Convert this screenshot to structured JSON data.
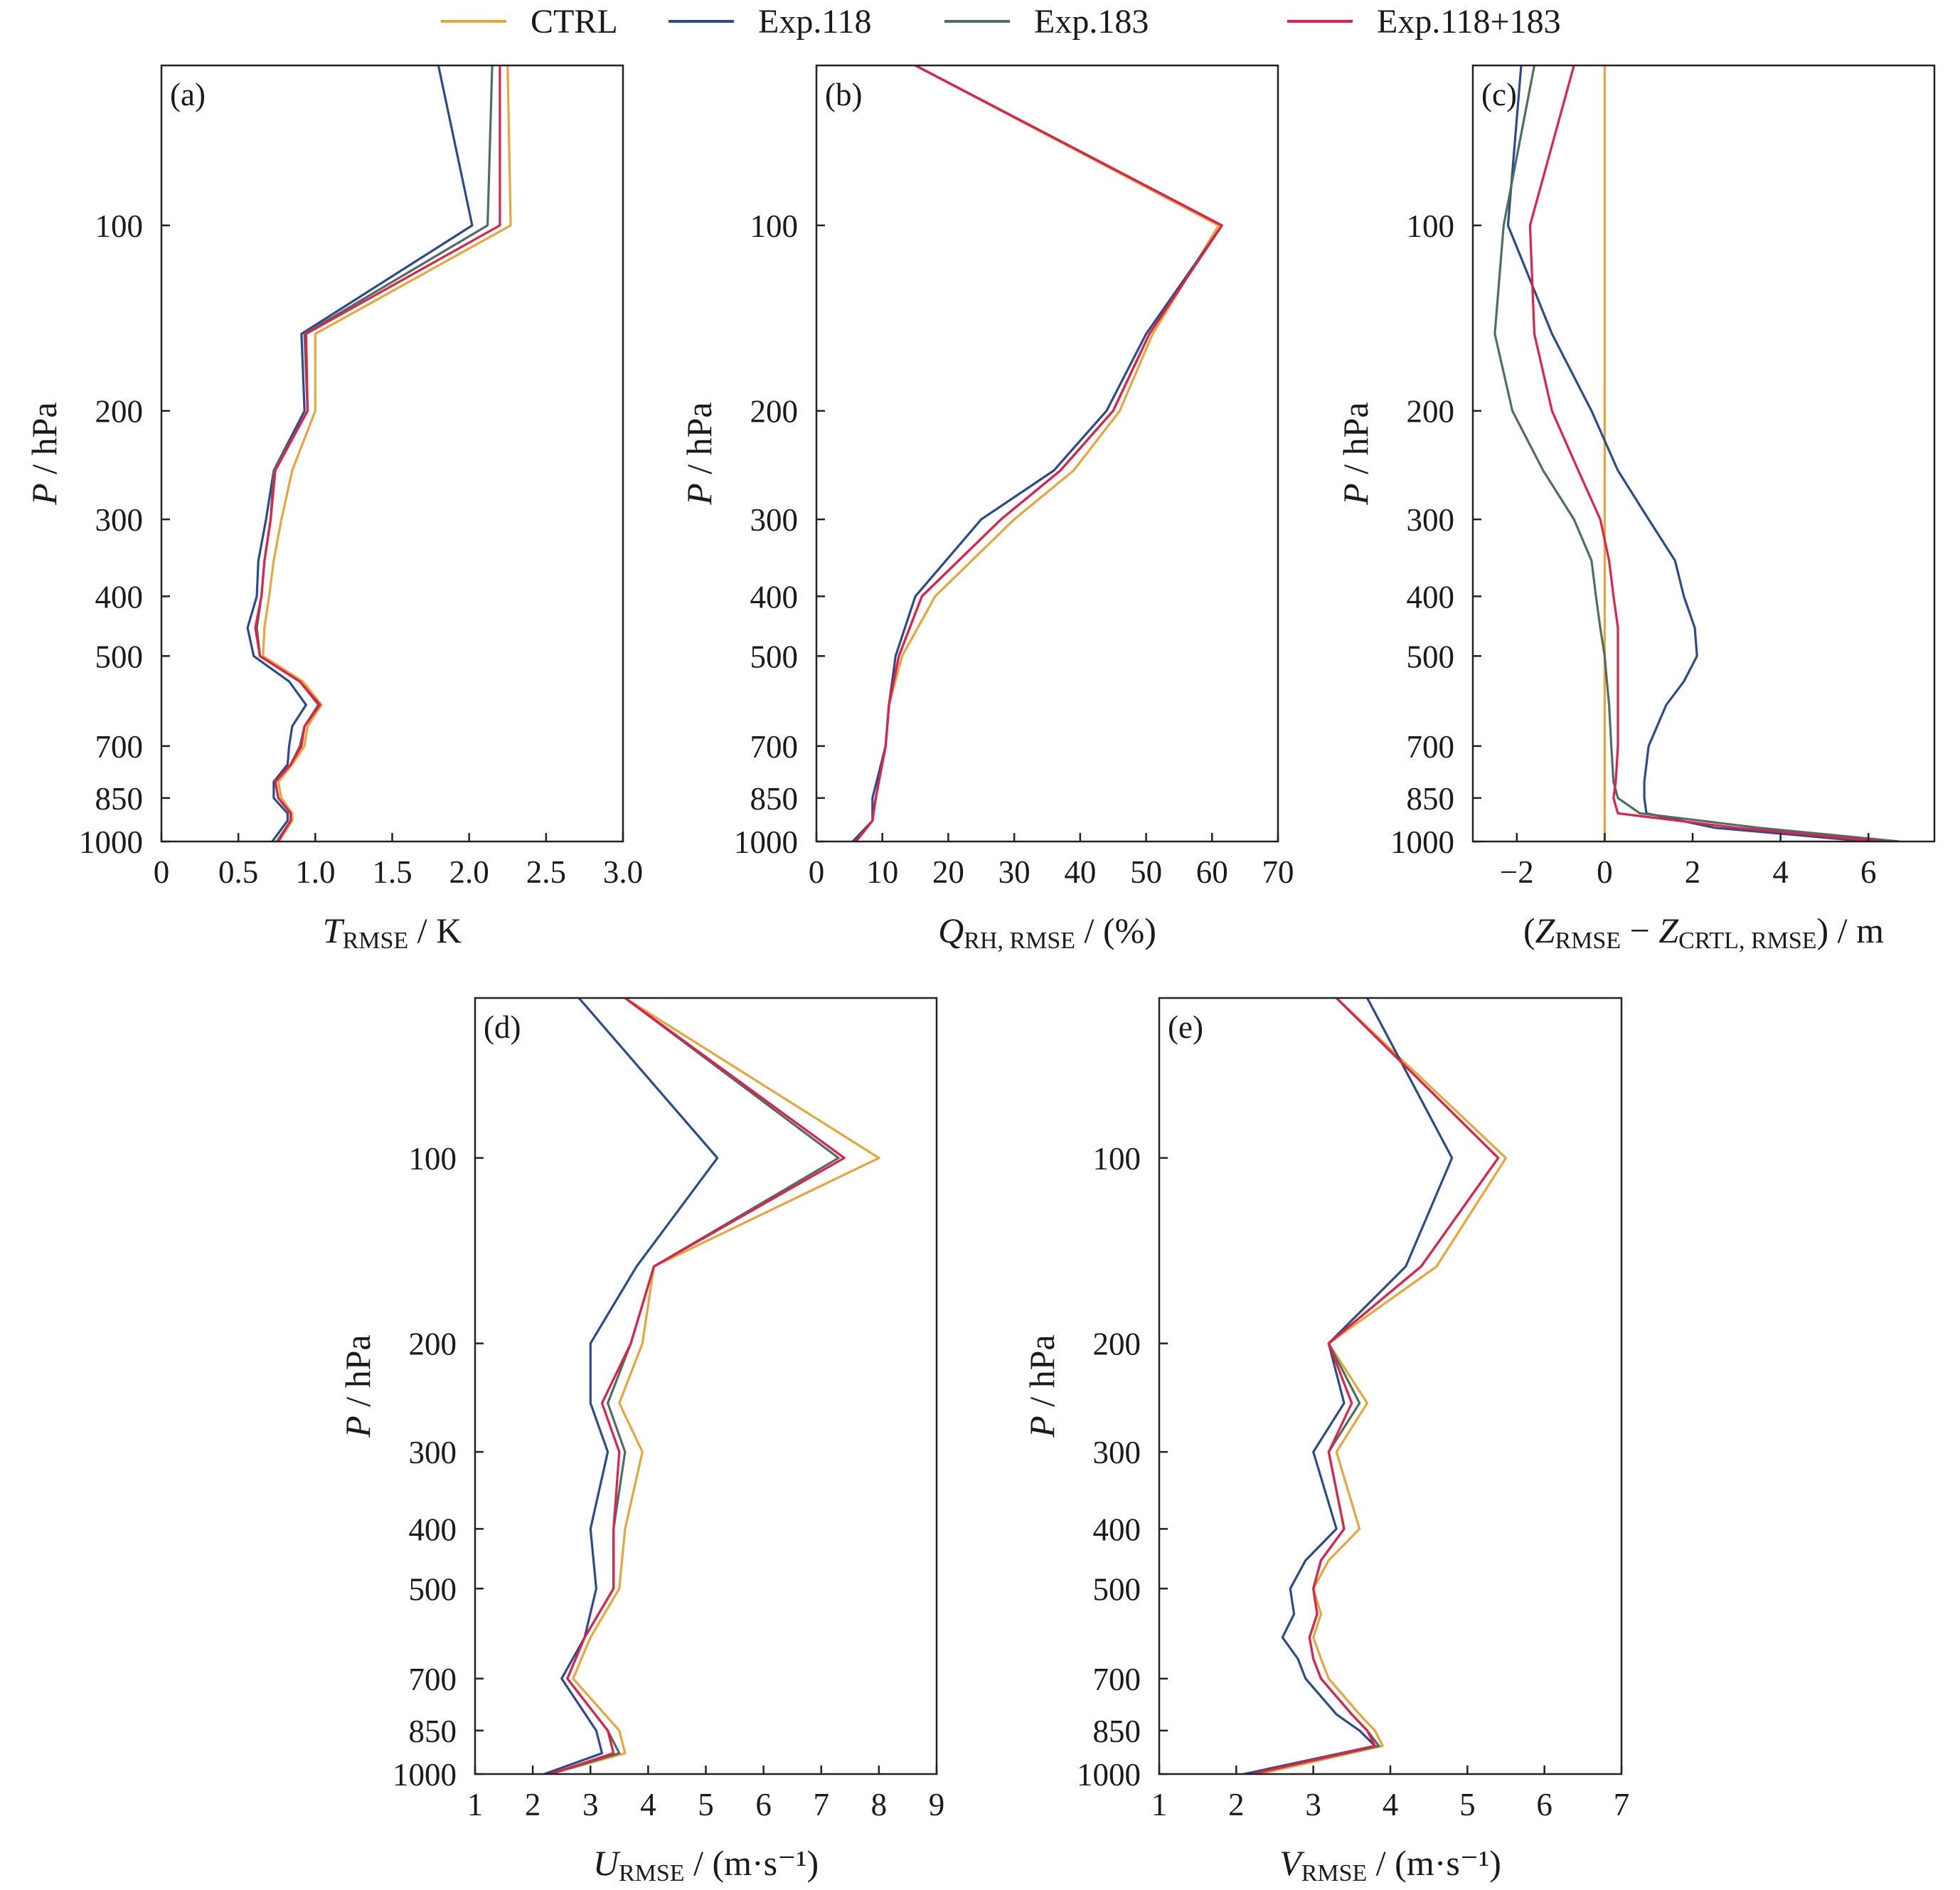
{
  "legend": [
    {
      "name": "CTRL",
      "color": "#e8a63a"
    },
    {
      "name": "Exp.118",
      "color": "#2b4b8f"
    },
    {
      "name": "Exp.183",
      "color": "#4f6e60"
    },
    {
      "name": "Exp.118+183",
      "color": "#e0214a"
    }
  ],
  "chart_data": [
    {
      "panel": "(a)",
      "type": "line",
      "orientation": "vertical-profile",
      "xlabel": "T_RMSE / K",
      "xlabel_main": "T",
      "xlabel_sub": "RMSE",
      "xlabel_unit": " / K",
      "ylabel": "P / hPa",
      "ylabel_main": "P",
      "ylabel_unit": " / hPa",
      "xlim": [
        0,
        3.0
      ],
      "ylim": [
        55,
        1000
      ],
      "yscale": "log",
      "yreversed": true,
      "xticks": [
        0,
        0.5,
        1.0,
        1.5,
        2.0,
        2.5,
        3.0
      ],
      "xticklabels": [
        "0",
        "0.5",
        "1.0",
        "1.5",
        "2.0",
        "2.5",
        "3.0"
      ],
      "yticks": [
        100,
        200,
        300,
        400,
        500,
        700,
        850,
        1000
      ],
      "yticklabels": [
        "100",
        "200",
        "300",
        "400",
        "500",
        "700",
        "850",
        "1000"
      ],
      "y": [
        55,
        100,
        150,
        200,
        250,
        300,
        350,
        400,
        450,
        500,
        550,
        600,
        650,
        700,
        750,
        800,
        850,
        900,
        925,
        1000
      ],
      "series": [
        {
          "name": "CTRL",
          "color": "#e8a63a",
          "values": [
            2.25,
            2.27,
            1.0,
            1.0,
            0.85,
            0.78,
            0.73,
            0.7,
            0.67,
            0.66,
            0.92,
            1.04,
            0.95,
            0.93,
            0.85,
            0.76,
            0.78,
            0.85,
            0.85,
            0.76
          ]
        },
        {
          "name": "Exp.118",
          "color": "#2b4b8f",
          "values": [
            1.8,
            2.02,
            0.91,
            0.93,
            0.73,
            0.68,
            0.63,
            0.62,
            0.56,
            0.6,
            0.83,
            0.94,
            0.85,
            0.83,
            0.82,
            0.73,
            0.73,
            0.82,
            0.82,
            0.72
          ]
        },
        {
          "name": "Exp.183",
          "color": "#4f6e60",
          "values": [
            2.15,
            2.12,
            0.93,
            0.95,
            0.73,
            0.71,
            0.67,
            0.65,
            0.62,
            0.64,
            0.9,
            1.02,
            0.93,
            0.9,
            0.84,
            0.74,
            0.76,
            0.84,
            0.84,
            0.75
          ]
        },
        {
          "name": "Exp.118+183",
          "color": "#e0214a",
          "values": [
            2.2,
            2.2,
            0.94,
            0.95,
            0.74,
            0.71,
            0.67,
            0.65,
            0.61,
            0.64,
            0.9,
            1.03,
            0.93,
            0.91,
            0.84,
            0.74,
            0.76,
            0.84,
            0.84,
            0.76
          ]
        }
      ]
    },
    {
      "panel": "(b)",
      "type": "line",
      "orientation": "vertical-profile",
      "xlabel": "Q_RH, RMSE / (%)",
      "xlabel_main": "Q",
      "xlabel_sub": "RH, RMSE",
      "xlabel_unit": " / (%)",
      "ylabel": "P / hPa",
      "ylabel_main": "P",
      "ylabel_unit": " / hPa",
      "xlim": [
        0,
        70
      ],
      "ylim": [
        55,
        1000
      ],
      "yscale": "log",
      "yreversed": true,
      "xticks": [
        0,
        10,
        20,
        30,
        40,
        50,
        60,
        70
      ],
      "xticklabels": [
        "0",
        "10",
        "20",
        "30",
        "40",
        "50",
        "60",
        "70"
      ],
      "yticks": [
        100,
        200,
        300,
        400,
        500,
        700,
        850,
        1000
      ],
      "yticklabels": [
        "100",
        "200",
        "300",
        "400",
        "500",
        "700",
        "850",
        "1000"
      ],
      "y": [
        55,
        100,
        150,
        200,
        250,
        300,
        400,
        500,
        600,
        700,
        850,
        925,
        1000
      ],
      "series": [
        {
          "name": "CTRL",
          "color": "#e8a63a",
          "values": [
            15,
            61,
            51,
            46,
            39,
            30,
            18,
            13,
            11,
            10.5,
            9,
            8.5,
            6
          ]
        },
        {
          "name": "Exp.118",
          "color": "#2b4b8f",
          "values": [
            15,
            61.5,
            50,
            44,
            36,
            25,
            15,
            12,
            11,
            10.5,
            8.5,
            8.5,
            5.5
          ]
        },
        {
          "name": "Exp.183",
          "color": "#4f6e60",
          "values": [
            15,
            61.5,
            50.5,
            45,
            37,
            28,
            16,
            12.5,
            11,
            10.5,
            9,
            8.5,
            6
          ]
        },
        {
          "name": "Exp.118+183",
          "color": "#e0214a",
          "values": [
            15,
            61.5,
            50.5,
            45,
            37,
            28,
            16,
            12.5,
            11,
            10.5,
            9,
            8.5,
            6
          ]
        }
      ]
    },
    {
      "panel": "(c)",
      "type": "line",
      "orientation": "vertical-profile",
      "xlabel": "(Z_RMSE − Z_CRTL, RMSE) / m",
      "xlabel_pre": "(",
      "xlabel_main": "Z",
      "xlabel_sub": "RMSE",
      "xlabel_mid": " − ",
      "xlabel_main2": "Z",
      "xlabel_sub2": "CRTL, RMSE",
      "xlabel_unit": ") / m",
      "ylabel": "P / hPa",
      "ylabel_main": "P",
      "ylabel_unit": " / hPa",
      "xlim": [
        -3,
        7.5
      ],
      "ylim": [
        55,
        1000
      ],
      "yscale": "log",
      "yreversed": true,
      "xticks": [
        -2,
        0,
        2,
        4,
        6
      ],
      "xticklabels": [
        "−2",
        "0",
        "2",
        "4",
        "6"
      ],
      "yticks": [
        100,
        200,
        300,
        400,
        500,
        700,
        850,
        1000
      ],
      "yticklabels": [
        "100",
        "200",
        "300",
        "400",
        "500",
        "700",
        "850",
        "1000"
      ],
      "y": [
        55,
        100,
        150,
        200,
        250,
        300,
        350,
        400,
        450,
        500,
        550,
        600,
        700,
        800,
        850,
        900,
        950,
        1000
      ],
      "series": [
        {
          "name": "CTRL",
          "color": "#e8a63a",
          "values": [
            0,
            0,
            0,
            0,
            0,
            0,
            0,
            0,
            0,
            0,
            0,
            0,
            0,
            0,
            0,
            0,
            0,
            0
          ]
        },
        {
          "name": "Exp.118",
          "color": "#2b4b8f",
          "values": [
            -1.9,
            -2.2,
            -1.2,
            -0.3,
            0.3,
            1.0,
            1.6,
            1.8,
            2.05,
            2.1,
            1.8,
            1.4,
            1.0,
            0.9,
            0.9,
            0.95,
            2.5,
            6.0
          ]
        },
        {
          "name": "Exp.183",
          "color": "#4f6e60",
          "values": [
            -1.6,
            -2.3,
            -2.5,
            -2.1,
            -1.4,
            -0.7,
            -0.3,
            -0.2,
            -0.1,
            0.0,
            0.05,
            0.1,
            0.15,
            0.2,
            0.3,
            0.8,
            3.5,
            6.7
          ]
        },
        {
          "name": "Exp.118+183",
          "color": "#e0214a",
          "values": [
            -0.7,
            -1.7,
            -1.6,
            -1.2,
            -0.6,
            -0.1,
            0.1,
            0.2,
            0.3,
            0.3,
            0.3,
            0.3,
            0.3,
            0.25,
            0.2,
            0.3,
            3.0,
            6.3
          ]
        }
      ]
    },
    {
      "panel": "(d)",
      "type": "line",
      "orientation": "vertical-profile",
      "xlabel": "U_RMSE / (m·s⁻¹)",
      "xlabel_main": "U",
      "xlabel_sub": "RMSE",
      "xlabel_unit": " / (m·s⁻¹)",
      "ylabel": "P / hPa",
      "ylabel_main": "P",
      "ylabel_unit": " / hPa",
      "xlim": [
        1,
        9
      ],
      "ylim": [
        55,
        1000
      ],
      "yscale": "log",
      "yreversed": true,
      "xticks": [
        1,
        2,
        3,
        4,
        5,
        6,
        7,
        8,
        9
      ],
      "xticklabels": [
        "1",
        "2",
        "3",
        "4",
        "5",
        "6",
        "7",
        "8",
        "9"
      ],
      "yticks": [
        100,
        200,
        300,
        400,
        500,
        700,
        850,
        1000
      ],
      "yticklabels": [
        "100",
        "200",
        "300",
        "400",
        "500",
        "700",
        "850",
        "1000"
      ],
      "y": [
        55,
        100,
        150,
        200,
        250,
        300,
        400,
        500,
        600,
        700,
        850,
        925,
        1000
      ],
      "series": [
        {
          "name": "CTRL",
          "color": "#e8a63a",
          "values": [
            3.6,
            8.0,
            4.1,
            3.9,
            3.5,
            3.9,
            3.6,
            3.5,
            3.0,
            2.7,
            3.5,
            3.6,
            2.3
          ]
        },
        {
          "name": "Exp.118",
          "color": "#2b4b8f",
          "values": [
            2.8,
            5.2,
            3.8,
            3.0,
            3.0,
            3.3,
            3.0,
            3.1,
            2.9,
            2.5,
            3.1,
            3.2,
            2.2
          ]
        },
        {
          "name": "Exp.183",
          "color": "#4f6e60",
          "values": [
            3.6,
            7.3,
            4.1,
            3.7,
            3.3,
            3.6,
            3.4,
            3.4,
            2.9,
            2.6,
            3.3,
            3.5,
            2.3
          ]
        },
        {
          "name": "Exp.118+183",
          "color": "#e0214a",
          "values": [
            3.6,
            7.4,
            4.1,
            3.7,
            3.2,
            3.5,
            3.4,
            3.4,
            2.9,
            2.6,
            3.3,
            3.4,
            2.3
          ]
        }
      ]
    },
    {
      "panel": "(e)",
      "type": "line",
      "orientation": "vertical-profile",
      "xlabel": "V_RMSE / (m·s⁻¹)",
      "xlabel_main": "V",
      "xlabel_sub": "RMSE",
      "xlabel_unit": " / (m·s⁻¹)",
      "ylabel": "P / hPa",
      "ylabel_main": "P",
      "ylabel_unit": " / hPa",
      "xlim": [
        1,
        7
      ],
      "ylim": [
        55,
        1000
      ],
      "yscale": "log",
      "yreversed": true,
      "xticks": [
        1,
        2,
        3,
        4,
        5,
        6,
        7
      ],
      "xticklabels": [
        "1",
        "2",
        "3",
        "4",
        "5",
        "6",
        "7"
      ],
      "yticks": [
        100,
        200,
        300,
        400,
        500,
        700,
        850,
        1000
      ],
      "yticklabels": [
        "100",
        "200",
        "300",
        "400",
        "500",
        "700",
        "850",
        "1000"
      ],
      "y": [
        55,
        100,
        150,
        200,
        250,
        300,
        400,
        450,
        500,
        550,
        600,
        650,
        700,
        800,
        850,
        900,
        1000
      ],
      "series": [
        {
          "name": "CTRL",
          "color": "#e8a63a",
          "values": [
            3.3,
            5.5,
            4.6,
            3.2,
            3.7,
            3.3,
            3.6,
            3.2,
            3.0,
            3.1,
            3.0,
            3.1,
            3.2,
            3.6,
            3.8,
            3.9,
            2.3
          ]
        },
        {
          "name": "Exp.118",
          "color": "#2b4b8f",
          "values": [
            3.7,
            4.8,
            4.2,
            3.2,
            3.4,
            3.0,
            3.3,
            2.9,
            2.7,
            2.75,
            2.6,
            2.8,
            2.9,
            3.3,
            3.6,
            3.8,
            2.1
          ]
        },
        {
          "name": "Exp.183",
          "color": "#4f6e60",
          "values": [
            3.3,
            5.4,
            4.4,
            3.2,
            3.6,
            3.2,
            3.4,
            3.1,
            3.0,
            3.05,
            2.95,
            3.0,
            3.1,
            3.5,
            3.7,
            3.85,
            2.2
          ]
        },
        {
          "name": "Exp.118+183",
          "color": "#e0214a",
          "values": [
            3.3,
            5.4,
            4.4,
            3.2,
            3.5,
            3.2,
            3.4,
            3.1,
            3.0,
            3.05,
            2.95,
            3.0,
            3.1,
            3.5,
            3.7,
            3.8,
            2.2
          ]
        }
      ]
    }
  ]
}
